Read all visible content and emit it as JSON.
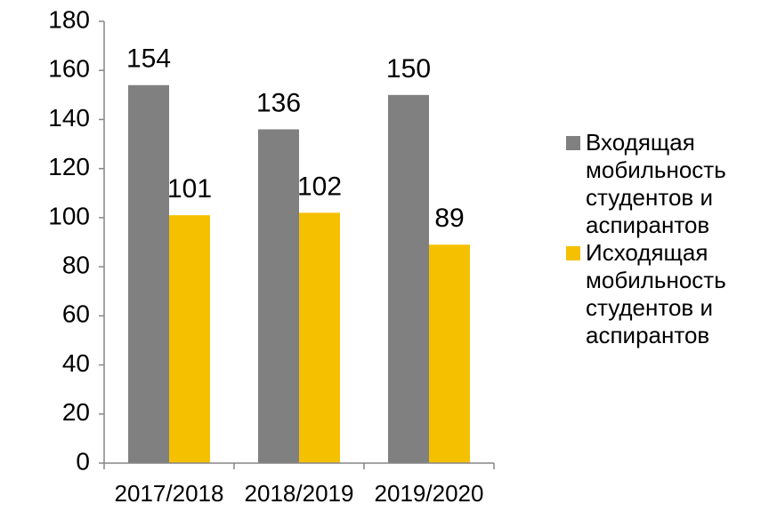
{
  "chart_data": {
    "type": "bar",
    "categories": [
      "2017/2018",
      "2018/2019",
      "2019/2020"
    ],
    "series": [
      {
        "name": "Входящая мобильность студентов и аспирантов",
        "color": "#808080",
        "values": [
          154,
          136,
          150
        ]
      },
      {
        "name": "Исходящая мобильность студентов и аспирантов",
        "color": "#f5c000",
        "values": [
          101,
          102,
          89
        ]
      }
    ],
    "ylim": [
      0,
      180
    ],
    "yticks": [
      0,
      20,
      40,
      60,
      80,
      100,
      120,
      140,
      160,
      180
    ],
    "grid": false,
    "legend": "right"
  }
}
